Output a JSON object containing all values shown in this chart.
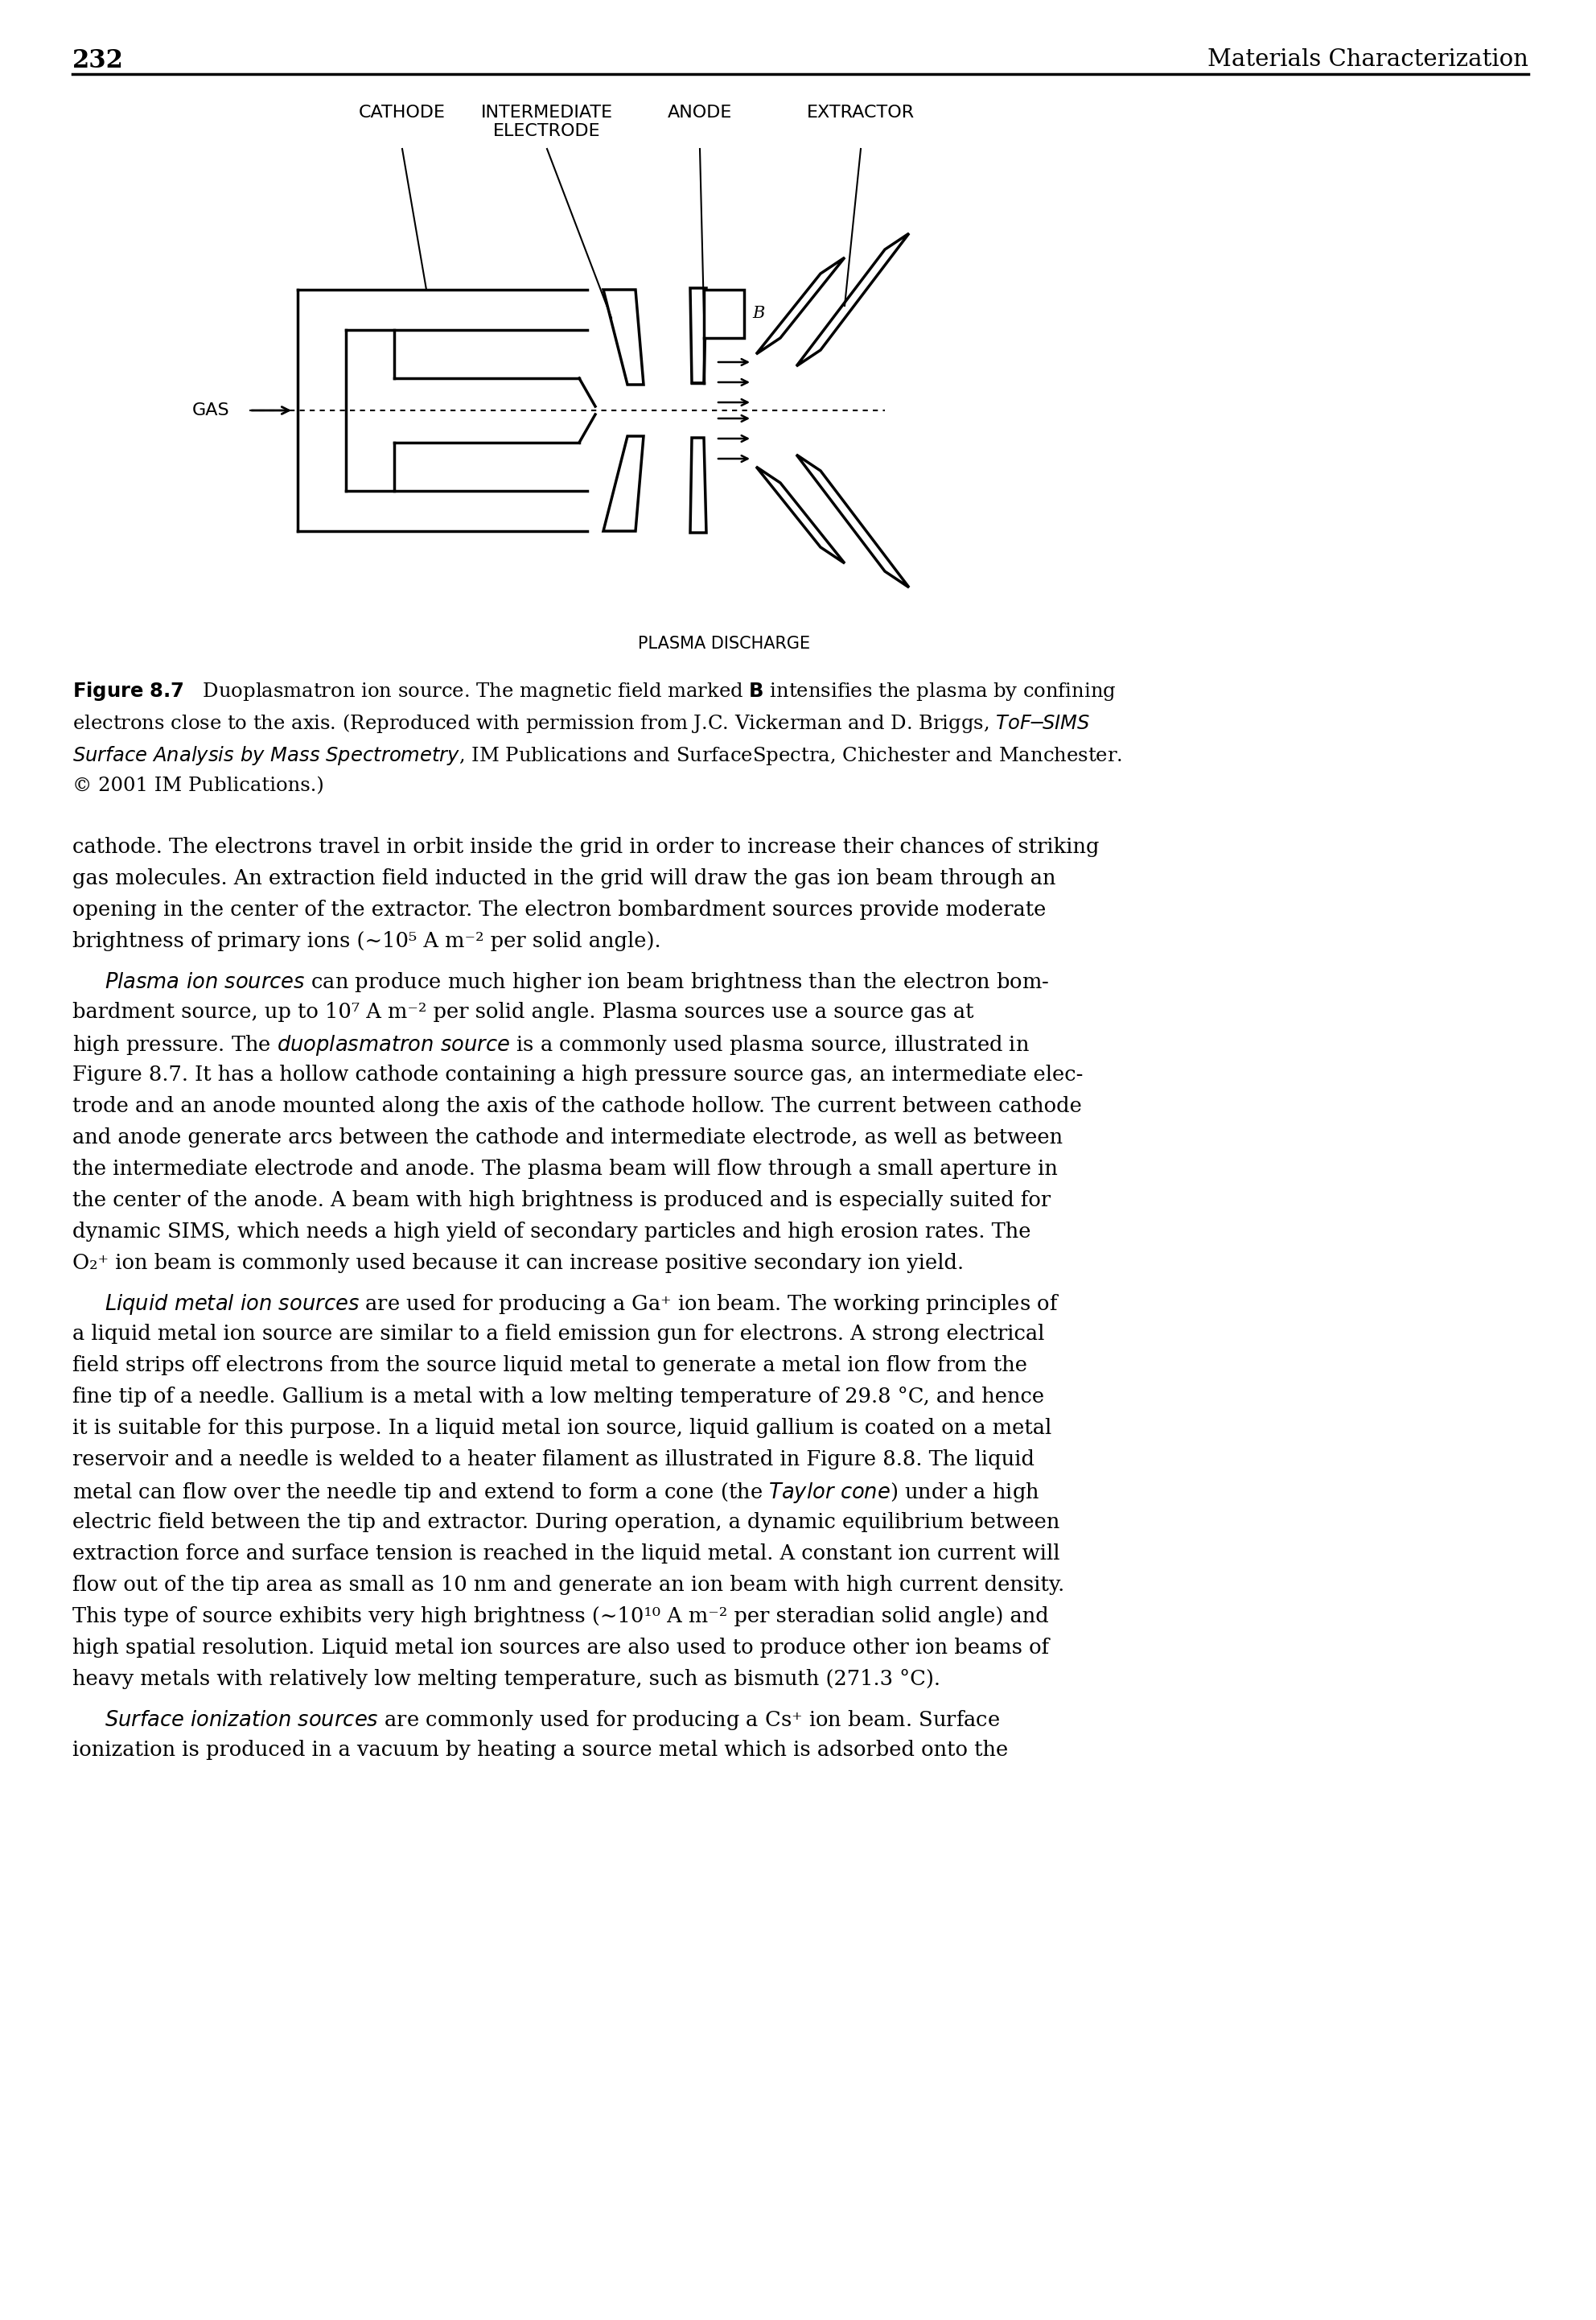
{
  "page_number": "232",
  "header_right": "Materials Characterization",
  "background_color": "#ffffff",
  "label_cathode": "CATHODE",
  "label_intermediate": "INTERMEDIATE",
  "label_electrode": "ELECTRODE",
  "label_anode": "ANODE",
  "label_extractor": "EXTRACTOR",
  "label_gas": "GAS",
  "label_plasma": "PLASMA DISCHARGE",
  "label_B": "B",
  "fig_bold1": "Figure 8.7",
  "fig_normal1": "   Duoplasmatron ion source. The magnetic field marked ",
  "fig_bold2": "B",
  "fig_normal2": " intensifies the plasma by confining",
  "fig_line2": "electrons close to the axis. (Reproduced with permission from J.C. Vickerman and D. Briggs, ",
  "fig_italic1": "ToF-SIMS",
  "fig_line3a": "Surface Analysis by ",
  "fig_italic2": "Mass Spectrometry",
  "fig_line3b": ", IM Publications and SurfaceSpectra, Chichester and Manchester.",
  "fig_line4": "© 2001 IM Publications.)",
  "p1_l1": "cathode. The electrons travel in orbit inside the grid in order to increase their chances of striking",
  "p1_l2": "gas molecules. An extraction field inducted in the grid will draw the gas ion beam through an",
  "p1_l3": "opening in the center of the extractor. The electron bombardment sources provide moderate",
  "p1_l4": "brightness of primary ions (∼10⁵ A m⁻² per solid angle).",
  "p2_l1n": " can produce much higher ion beam brightness than the electron bom-",
  "p2_l2": "bardment source, up to 10⁷ A m⁻² per solid angle. Plasma sources use a source gas at",
  "p2_l3n": " is a commonly used plasma source, illustrated in",
  "p2_l4": "Figure 8.7. It has a hollow cathode containing a high pressure source gas, an intermediate elec-",
  "p2_l5": "trode and an anode mounted along the axis of the cathode hollow. The current between cathode",
  "p2_l6": "and anode generate arcs between the cathode and intermediate electrode, as well as between",
  "p2_l7": "the intermediate electrode and anode. The plasma beam will flow through a small aperture in",
  "p2_l8": "the center of the anode. A beam with high brightness is produced and is especially suited for",
  "p2_l9": "dynamic SIMS, which needs a high yield of secondary particles and high erosion rates. The",
  "p2_l10": "O₂⁺ ion beam is commonly used because it can increase positive secondary ion yield.",
  "p3_l1n": " are used for producing a Ga⁺ ion beam. The working principles of",
  "p3_l2": "a liquid metal ion source are similar to a field emission gun for electrons. A strong electrical",
  "p3_l3": "field strips off electrons from the source liquid metal to generate a metal ion flow from the",
  "p3_l4": "fine tip of a needle. Gallium is a metal with a low melting temperature of 29.8 °C, and hence",
  "p3_l5": "it is suitable for this purpose. In a liquid metal ion source, liquid gallium is coated on a metal",
  "p3_l6": "reservoir and a needle is welded to a heater filament as illustrated in Figure 8.8. The liquid",
  "p3_l7n": ") under a high",
  "p3_l7pre": "metal can flow over the needle tip and extend to form a cone (the ",
  "p3_l8": "electric field between the tip and extractor. During operation, a dynamic equilibrium between",
  "p3_l9": "extraction force and surface tension is reached in the liquid metal. A constant ion current will",
  "p3_l10": "flow out of the tip area as small as 10 nm and generate an ion beam with high current density.",
  "p3_l11": "This type of source exhibits very high brightness (∼10¹⁰ A m⁻² per steradian solid angle) and",
  "p3_l12": "high spatial resolution. Liquid metal ion sources are also used to produce other ion beams of",
  "p3_l13": "heavy metals with relatively low melting temperature, such as bismuth (271.3 °C).",
  "p4_l1n": " are commonly used for producing a Cs⁺ ion beam. Surface",
  "p4_l2": "ionization is produced in a vacuum by heating a source metal which is adsorbed onto the"
}
